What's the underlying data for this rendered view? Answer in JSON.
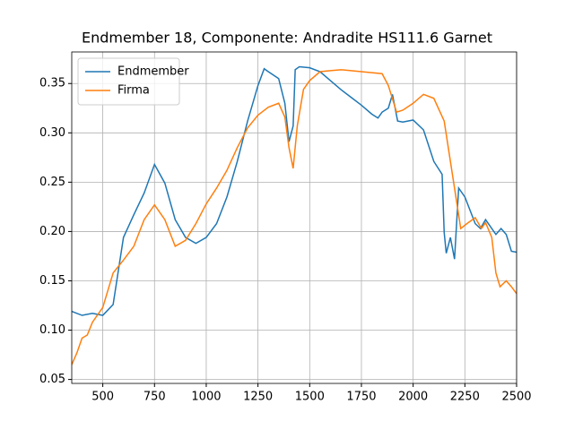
{
  "chart_data": {
    "type": "line",
    "title": "Endmember 18, Componente: Andradite HS111.6  Garnet",
    "xlim": [
      350,
      2500
    ],
    "ylim": [
      0.046,
      0.382
    ],
    "xticks": [
      500,
      750,
      1000,
      1250,
      1500,
      1750,
      2000,
      2250,
      2500
    ],
    "yticks": [
      0.05,
      {
        "value": 0.1,
        "label": "0.10"
      },
      0.15,
      {
        "value": 0.2,
        "label": "0.20"
      },
      0.25,
      {
        "value": 0.3,
        "label": "0.30"
      },
      0.35
    ],
    "grid": true,
    "legend": "upper left",
    "series": [
      {
        "name": "Endmember",
        "color": "#1f77b4",
        "x": [
          350,
          400,
          450,
          500,
          550,
          600,
          650,
          700,
          750,
          800,
          850,
          900,
          950,
          1000,
          1050,
          1100,
          1150,
          1200,
          1250,
          1280,
          1300,
          1350,
          1380,
          1400,
          1420,
          1430,
          1450,
          1500,
          1550,
          1600,
          1650,
          1700,
          1750,
          1800,
          1830,
          1850,
          1880,
          1900,
          1925,
          1950,
          2000,
          2050,
          2100,
          2140,
          2150,
          2160,
          2180,
          2200,
          2220,
          2250,
          2300,
          2325,
          2350,
          2400,
          2425,
          2450,
          2475,
          2500
        ],
        "values": [
          0.119,
          0.115,
          0.117,
          0.115,
          0.126,
          0.194,
          0.217,
          0.239,
          0.268,
          0.249,
          0.212,
          0.194,
          0.188,
          0.194,
          0.208,
          0.235,
          0.271,
          0.312,
          0.348,
          0.365,
          0.362,
          0.355,
          0.33,
          0.291,
          0.307,
          0.364,
          0.367,
          0.366,
          0.362,
          0.353,
          0.344,
          0.336,
          0.328,
          0.319,
          0.315,
          0.321,
          0.325,
          0.339,
          0.312,
          0.311,
          0.313,
          0.303,
          0.271,
          0.258,
          0.199,
          0.178,
          0.194,
          0.172,
          0.244,
          0.235,
          0.208,
          0.203,
          0.212,
          0.197,
          0.203,
          0.197,
          0.18,
          0.179
        ]
      },
      {
        "name": "Firma",
        "color": "#ff7f0e",
        "x": [
          350,
          375,
          400,
          425,
          450,
          500,
          550,
          600,
          650,
          700,
          750,
          800,
          850,
          900,
          950,
          1000,
          1050,
          1100,
          1150,
          1200,
          1250,
          1300,
          1350,
          1380,
          1400,
          1420,
          1440,
          1470,
          1500,
          1550,
          1600,
          1650,
          1700,
          1750,
          1800,
          1850,
          1880,
          1920,
          1950,
          2000,
          2050,
          2100,
          2150,
          2200,
          2230,
          2260,
          2300,
          2330,
          2350,
          2380,
          2400,
          2420,
          2450,
          2475,
          2500
        ],
        "values": [
          0.065,
          0.077,
          0.092,
          0.095,
          0.108,
          0.123,
          0.158,
          0.171,
          0.185,
          0.212,
          0.227,
          0.212,
          0.185,
          0.191,
          0.208,
          0.228,
          0.244,
          0.262,
          0.285,
          0.305,
          0.318,
          0.326,
          0.33,
          0.316,
          0.285,
          0.264,
          0.307,
          0.344,
          0.353,
          0.362,
          0.363,
          0.364,
          0.363,
          0.362,
          0.361,
          0.36,
          0.348,
          0.321,
          0.323,
          0.33,
          0.339,
          0.335,
          0.312,
          0.244,
          0.203,
          0.208,
          0.214,
          0.203,
          0.209,
          0.194,
          0.158,
          0.144,
          0.15,
          0.144,
          0.137
        ]
      }
    ]
  }
}
